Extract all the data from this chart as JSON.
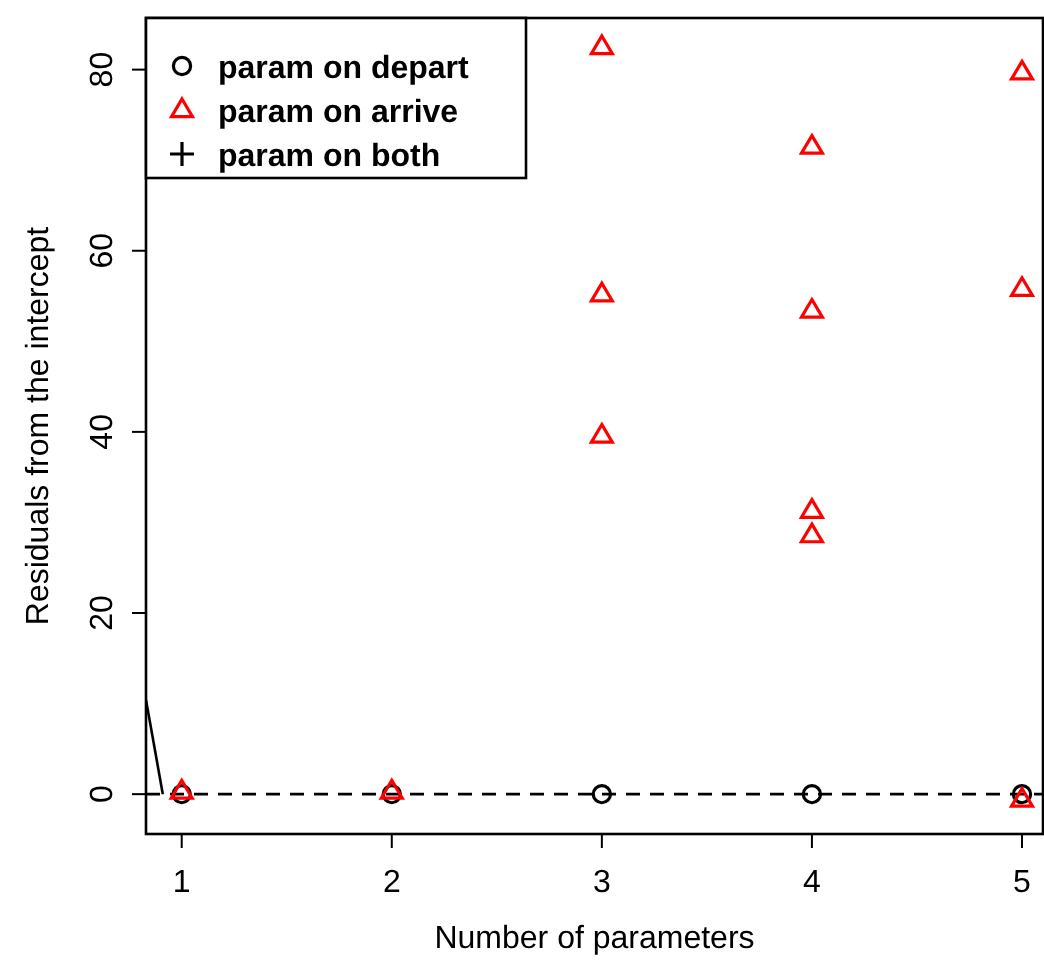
{
  "chart_data": {
    "type": "scatter",
    "xlabel": "Number of parameters",
    "ylabel": "Residuals from the intercept",
    "xlim": [
      0.83,
      5.1
    ],
    "ylim": [
      -4.4,
      85.7
    ],
    "xticks": [
      1,
      2,
      3,
      4,
      5
    ],
    "yticks": [
      0,
      20,
      40,
      60,
      80
    ],
    "grid": false,
    "legend": "top left",
    "series": [
      {
        "name": "param on depart",
        "color": "#000000",
        "marker": "circle",
        "x": [
          1,
          2,
          3,
          4,
          5
        ],
        "values": [
          0,
          0,
          0,
          0,
          0
        ]
      },
      {
        "name": "param on arrive",
        "color": "#ff0000",
        "marker": "triangle",
        "x": [
          1,
          2,
          3,
          3,
          3,
          4,
          4,
          4,
          4,
          5,
          5,
          5
        ],
        "values": [
          0.3,
          0.3,
          82.5,
          55.2,
          39.6,
          71.5,
          53.4,
          31.3,
          28.6,
          79.7,
          55.8,
          -0.6
        ]
      },
      {
        "name": "param on both",
        "color": "#000000",
        "marker": "cross"
      },
      {
        "type": "line",
        "color": "#000000",
        "marker": "none",
        "x": [
          0.83,
          0.91
        ],
        "values": [
          10.4,
          0
        ]
      }
    ],
    "ref_lines": [
      {
        "axis": "y",
        "value": 0,
        "line_style": "dashed",
        "color": "#000000"
      }
    ]
  }
}
